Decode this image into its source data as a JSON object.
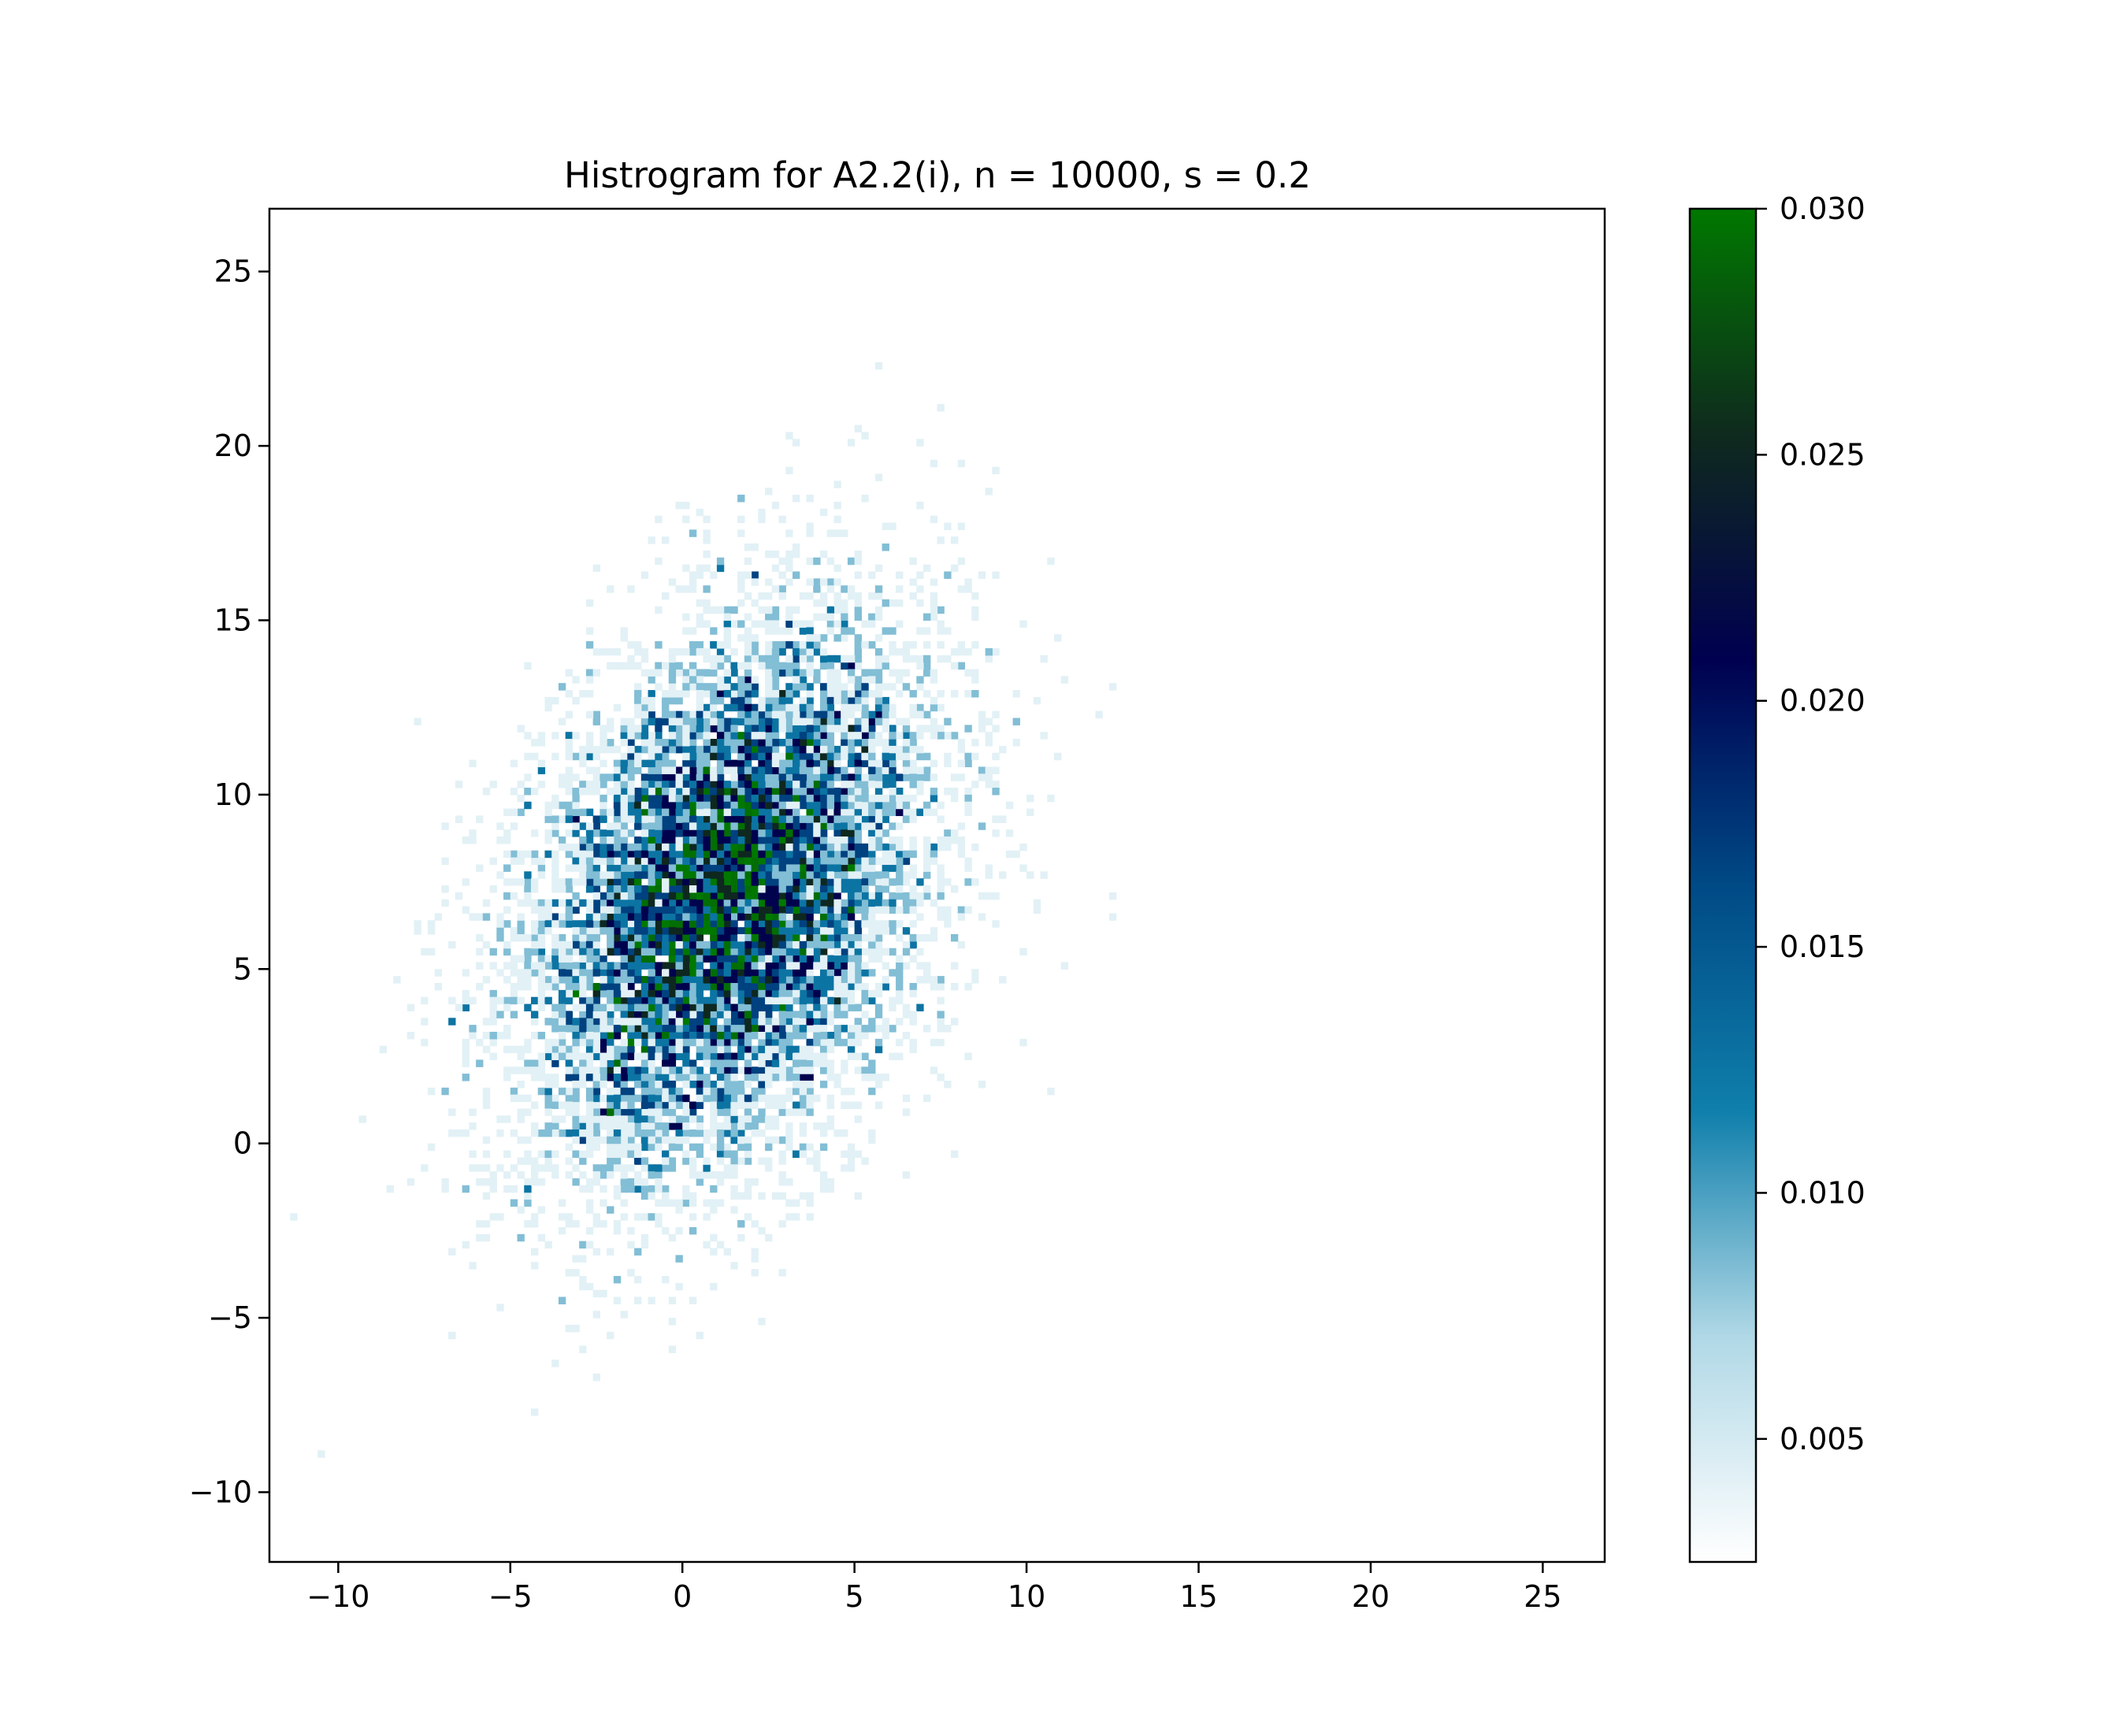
{
  "chart_data": {
    "type": "heatmap",
    "title": "Histrogram for A2.2(i),  n = 10000, s = 0.2",
    "xlabel": "",
    "ylabel": "",
    "xlim": [
      -12,
      26.8
    ],
    "ylim": [
      -12,
      26.8
    ],
    "xticks": [
      -10,
      -5,
      0,
      5,
      10,
      15,
      20,
      25
    ],
    "yticks": [
      -10,
      -5,
      0,
      5,
      10,
      15,
      20,
      25
    ],
    "xtick_labels": [
      "−10",
      "−5",
      "0",
      "5",
      "10",
      "15",
      "20",
      "25"
    ],
    "ytick_labels": [
      "−10",
      "−5",
      "0",
      "5",
      "10",
      "15",
      "20",
      "25"
    ],
    "bin_width": 0.2,
    "grid": false,
    "sample": {
      "n": 10000,
      "mean": [
        1.2,
        7.0
      ],
      "std": [
        3.0,
        4.0
      ],
      "correlation": 0.35
    },
    "colorbar": {
      "min": 0.0025,
      "max": 0.03,
      "ticks": [
        0.005,
        0.01,
        0.015,
        0.02,
        0.025,
        0.03
      ],
      "tick_labels": [
        "0.005",
        "0.010",
        "0.015",
        "0.020",
        "0.025",
        "0.030"
      ],
      "colormap": [
        "#ffffff",
        "#b0d8e6",
        "#0f7fab",
        "#004a86",
        "#000050",
        "#0f2a1e",
        "#007800"
      ]
    },
    "notable_points": [
      {
        "x": -7.5,
        "y": 3.5
      },
      {
        "x": 10.9,
        "y": 11.1
      },
      {
        "x": 3.2,
        "y": 19.3
      },
      {
        "x": 1.5,
        "y": -3.5
      },
      {
        "x": 0.2,
        "y": 17.9
      },
      {
        "x": 6.0,
        "y": 17.7
      },
      {
        "x": 8.0,
        "y": 16.7
      },
      {
        "x": 9.0,
        "y": 10.1
      },
      {
        "x": -2.5,
        "y": -3.1
      }
    ]
  }
}
